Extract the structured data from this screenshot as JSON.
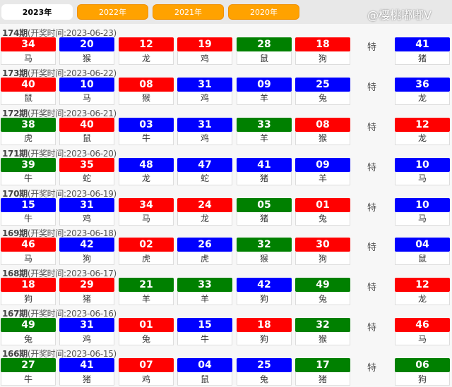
{
  "tabs": [
    {
      "label": "2023年",
      "active": true
    },
    {
      "label": "2022年"
    },
    {
      "label": "2021年"
    },
    {
      "label": "2020年"
    }
  ],
  "colors": {
    "r": "#ff0000",
    "b": "#0000ff",
    "g": "#008000"
  },
  "special_label": "特",
  "periods": [
    {
      "issue": "174期",
      "date": "(开奖时间:2023-06-23)",
      "balls": [
        [
          "34",
          "马",
          "r"
        ],
        [
          "20",
          "猴",
          "b"
        ],
        [
          "12",
          "龙",
          "r"
        ],
        [
          "19",
          "鸡",
          "r"
        ],
        [
          "28",
          "鼠",
          "g"
        ],
        [
          "18",
          "狗",
          "r"
        ]
      ],
      "special": [
        "41",
        "猪",
        "b"
      ]
    },
    {
      "issue": "173期",
      "date": "(开奖时间:2023-06-22)",
      "balls": [
        [
          "40",
          "鼠",
          "r"
        ],
        [
          "10",
          "马",
          "b"
        ],
        [
          "08",
          "猴",
          "r"
        ],
        [
          "31",
          "鸡",
          "b"
        ],
        [
          "09",
          "羊",
          "b"
        ],
        [
          "25",
          "兔",
          "b"
        ]
      ],
      "special": [
        "36",
        "龙",
        "b"
      ]
    },
    {
      "issue": "172期",
      "date": "(开奖时间:2023-06-21)",
      "balls": [
        [
          "38",
          "虎",
          "g"
        ],
        [
          "40",
          "鼠",
          "r"
        ],
        [
          "03",
          "牛",
          "b"
        ],
        [
          "31",
          "鸡",
          "b"
        ],
        [
          "33",
          "羊",
          "g"
        ],
        [
          "08",
          "猴",
          "r"
        ]
      ],
      "special": [
        "12",
        "龙",
        "r"
      ]
    },
    {
      "issue": "171期",
      "date": "(开奖时间:2023-06-20)",
      "balls": [
        [
          "39",
          "牛",
          "g"
        ],
        [
          "35",
          "蛇",
          "r"
        ],
        [
          "48",
          "龙",
          "b"
        ],
        [
          "47",
          "蛇",
          "b"
        ],
        [
          "41",
          "猪",
          "b"
        ],
        [
          "09",
          "羊",
          "b"
        ]
      ],
      "special": [
        "10",
        "马",
        "b"
      ]
    },
    {
      "issue": "170期",
      "date": "(开奖时间:2023-06-19)",
      "balls": [
        [
          "15",
          "牛",
          "b"
        ],
        [
          "31",
          "鸡",
          "b"
        ],
        [
          "34",
          "马",
          "r"
        ],
        [
          "24",
          "龙",
          "r"
        ],
        [
          "05",
          "猪",
          "g"
        ],
        [
          "01",
          "兔",
          "r"
        ]
      ],
      "special": [
        "10",
        "马",
        "b"
      ]
    },
    {
      "issue": "169期",
      "date": "(开奖时间:2023-06-18)",
      "balls": [
        [
          "46",
          "马",
          "r"
        ],
        [
          "42",
          "狗",
          "b"
        ],
        [
          "02",
          "虎",
          "r"
        ],
        [
          "26",
          "虎",
          "b"
        ],
        [
          "32",
          "猴",
          "g"
        ],
        [
          "30",
          "狗",
          "r"
        ]
      ],
      "special": [
        "04",
        "鼠",
        "b"
      ]
    },
    {
      "issue": "168期",
      "date": "(开奖时间:2023-06-17)",
      "balls": [
        [
          "18",
          "狗",
          "r"
        ],
        [
          "29",
          "猪",
          "r"
        ],
        [
          "21",
          "羊",
          "g"
        ],
        [
          "33",
          "羊",
          "g"
        ],
        [
          "42",
          "狗",
          "b"
        ],
        [
          "49",
          "兔",
          "g"
        ]
      ],
      "special": [
        "12",
        "龙",
        "r"
      ]
    },
    {
      "issue": "167期",
      "date": "(开奖时间:2023-06-16)",
      "balls": [
        [
          "49",
          "兔",
          "g"
        ],
        [
          "31",
          "鸡",
          "b"
        ],
        [
          "01",
          "兔",
          "r"
        ],
        [
          "15",
          "牛",
          "b"
        ],
        [
          "18",
          "狗",
          "r"
        ],
        [
          "32",
          "猴",
          "g"
        ]
      ],
      "special": [
        "46",
        "马",
        "r"
      ]
    },
    {
      "issue": "166期",
      "date": "(开奖时间:2023-06-15)",
      "balls": [
        [
          "27",
          "牛",
          "g"
        ],
        [
          "41",
          "猪",
          "b"
        ],
        [
          "07",
          "鸡",
          "r"
        ],
        [
          "04",
          "鼠",
          "b"
        ],
        [
          "25",
          "兔",
          "b"
        ],
        [
          "17",
          "猪",
          "g"
        ]
      ],
      "special": [
        "06",
        "狗",
        "g"
      ]
    }
  ],
  "watermark": "@樱桃嘟嘟V"
}
